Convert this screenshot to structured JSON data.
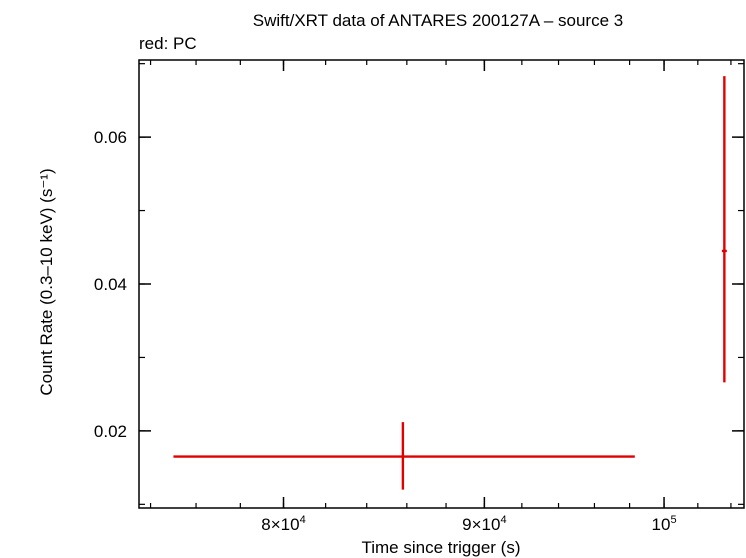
{
  "chart_data": {
    "type": "scatter",
    "title": "Swift/XRT data of ANTARES 200127A – source 3",
    "subtitle": "red: PC",
    "xlabel": "Time since trigger (s)",
    "ylabel": "Count Rate (0.3–10 keV) (s⁻¹)",
    "x_scale": "log",
    "xlim": [
      73500,
      104800
    ],
    "ylim": [
      0.0095,
      0.0705
    ],
    "x_ticks": [
      {
        "value": 80000,
        "mant": "8×10",
        "exp": "4"
      },
      {
        "value": 90000,
        "mant": "9×10",
        "exp": "4"
      },
      {
        "value": 100000,
        "mant": "10",
        "exp": "5"
      }
    ],
    "y_ticks": [
      {
        "value": 0.02,
        "label": "0.02"
      },
      {
        "value": 0.04,
        "label": "0.04"
      },
      {
        "value": 0.06,
        "label": "0.06"
      }
    ],
    "series": [
      {
        "color": "#e00000",
        "points": [
          {
            "x": 85800,
            "x_lo": 75000,
            "x_hi": 98300,
            "y": 0.0165,
            "y_lo": 0.012,
            "y_hi": 0.0212
          },
          {
            "x": 103600,
            "x_lo": 103450,
            "x_hi": 103750,
            "y": 0.0445,
            "y_lo": 0.0266,
            "y_hi": 0.0683
          }
        ]
      }
    ],
    "grid": false,
    "legend": "none"
  }
}
